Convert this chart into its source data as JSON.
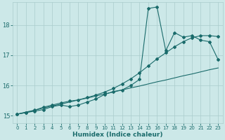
{
  "xlabel": "Humidex (Indice chaleur)",
  "ylabel": "",
  "bg_color": "#cce8e8",
  "grid_color": "#aacccc",
  "line_color": "#1a6b6b",
  "xlim": [
    -0.5,
    23.5
  ],
  "ylim": [
    14.75,
    18.75
  ],
  "yticks": [
    15,
    16,
    17,
    18
  ],
  "xticks": [
    0,
    1,
    2,
    3,
    4,
    5,
    6,
    7,
    8,
    9,
    10,
    11,
    12,
    13,
    14,
    15,
    16,
    17,
    18,
    19,
    20,
    21,
    22,
    23
  ],
  "x_data": [
    0,
    1,
    2,
    3,
    4,
    5,
    6,
    7,
    8,
    9,
    10,
    11,
    12,
    13,
    14,
    15,
    16,
    17,
    18,
    19,
    20,
    21,
    22,
    23
  ],
  "y_jagged": [
    15.05,
    15.1,
    15.15,
    15.2,
    15.3,
    15.35,
    15.3,
    15.35,
    15.45,
    15.55,
    15.7,
    15.8,
    15.85,
    16.0,
    16.2,
    18.55,
    18.6,
    17.15,
    17.75,
    17.6,
    17.65,
    17.5,
    17.45,
    16.85
  ],
  "y_smooth1": [
    15.05,
    15.1,
    15.18,
    15.28,
    15.35,
    15.42,
    15.48,
    15.52,
    15.6,
    15.68,
    15.78,
    15.9,
    16.05,
    16.22,
    16.42,
    16.65,
    16.88,
    17.08,
    17.28,
    17.45,
    17.58,
    17.65,
    17.65,
    17.62
  ],
  "y_straight": [
    15.05,
    15.12,
    15.18,
    15.25,
    15.32,
    15.38,
    15.45,
    15.52,
    15.58,
    15.65,
    15.72,
    15.78,
    15.85,
    15.92,
    15.98,
    16.05,
    16.12,
    16.18,
    16.25,
    16.32,
    16.38,
    16.45,
    16.52,
    16.58
  ]
}
